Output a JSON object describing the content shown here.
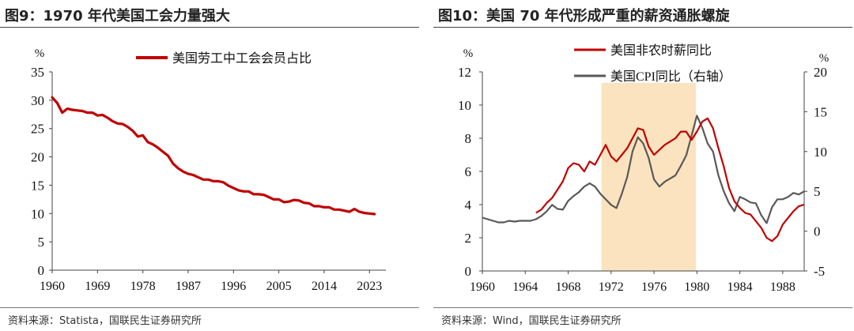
{
  "left": {
    "title": "图9：1970 年代美国工会力量强大",
    "source": "资料来源：Statista，国联民生证券研究所",
    "chart_data": {
      "type": "line",
      "ylabel": "%",
      "ylim": [
        0,
        35
      ],
      "yticks": [
        0,
        5,
        10,
        15,
        20,
        25,
        30,
        35
      ],
      "xlim": [
        1960,
        2025
      ],
      "xticks": [
        1960,
        1969,
        1978,
        1987,
        1996,
        2005,
        2014,
        2023
      ],
      "legend": "top-right",
      "series": [
        {
          "name": "美国劳工中工会会员占比",
          "color": "#c00000",
          "x": [
            1960,
            1961,
            1962,
            1963,
            1964,
            1965,
            1966,
            1967,
            1968,
            1969,
            1970,
            1971,
            1972,
            1973,
            1974,
            1975,
            1976,
            1977,
            1978,
            1979,
            1980,
            1981,
            1982,
            1983,
            1984,
            1985,
            1986,
            1987,
            1988,
            1989,
            1990,
            1991,
            1992,
            1993,
            1994,
            1995,
            1996,
            1997,
            1998,
            1999,
            2000,
            2001,
            2002,
            2003,
            2004,
            2005,
            2006,
            2007,
            2008,
            2009,
            2010,
            2011,
            2012,
            2013,
            2014,
            2015,
            2016,
            2017,
            2018,
            2019,
            2020,
            2021,
            2022,
            2023,
            2024
          ],
          "y": [
            30.5,
            29.5,
            27.8,
            28.5,
            28.3,
            28.2,
            28.1,
            27.8,
            27.8,
            27.3,
            27.4,
            26.9,
            26.3,
            25.9,
            25.8,
            25.3,
            24.6,
            23.6,
            23.8,
            22.6,
            22.2,
            21.6,
            20.9,
            20.2,
            18.8,
            18.0,
            17.4,
            17.0,
            16.8,
            16.4,
            16.0,
            16.0,
            15.7,
            15.7,
            15.5,
            14.9,
            14.5,
            14.1,
            13.9,
            13.9,
            13.4,
            13.4,
            13.3,
            12.9,
            12.5,
            12.5,
            12.0,
            12.1,
            12.4,
            12.3,
            11.9,
            11.8,
            11.3,
            11.3,
            11.1,
            11.1,
            10.7,
            10.7,
            10.5,
            10.3,
            10.8,
            10.3,
            10.1,
            10.0,
            9.9
          ]
        }
      ]
    }
  },
  "right": {
    "title": "图10：美国 70 年代形成严重的薪资通胀螺旋",
    "source": "资料来源：Wind，国联民生证券研究所",
    "chart_data": {
      "type": "line",
      "ylabel": "%",
      "ylabel_right": "%",
      "ylim": [
        0,
        12
      ],
      "yticks": [
        0,
        2,
        4,
        6,
        8,
        10,
        12
      ],
      "ylim_right": [
        -5,
        20
      ],
      "yticks_right": [
        -5,
        0,
        5,
        10,
        15,
        20
      ],
      "xlim": [
        1960,
        1990
      ],
      "xticks": [
        1960,
        1964,
        1968,
        1972,
        1976,
        1980,
        1984,
        1988
      ],
      "highlight": {
        "x_start": 1971.1,
        "x_end": 1979.9,
        "color": "#fbe3bf"
      },
      "legend": "top-center",
      "series": [
        {
          "name": "美国非农时薪同比",
          "axis": "left",
          "color": "#c00000",
          "x": [
            1965,
            1965.5,
            1966,
            1966.5,
            1967,
            1967.5,
            1968,
            1968.5,
            1969,
            1969.5,
            1970,
            1970.5,
            1971,
            1971.5,
            1972,
            1972.5,
            1973,
            1973.5,
            1974,
            1974.5,
            1975,
            1975.5,
            1976,
            1976.5,
            1977,
            1977.5,
            1978,
            1978.5,
            1979,
            1979.5,
            1980,
            1980.5,
            1981,
            1981.5,
            1982,
            1982.5,
            1983,
            1983.5,
            1984,
            1984.5,
            1985,
            1985.5,
            1986,
            1986.5,
            1987,
            1987.5,
            1988,
            1988.5,
            1989,
            1989.5,
            1990
          ],
          "y": [
            3.5,
            3.7,
            4.1,
            4.4,
            4.9,
            5.4,
            6.2,
            6.5,
            6.4,
            6.0,
            6.6,
            6.4,
            7.0,
            7.6,
            6.9,
            6.6,
            7.0,
            7.4,
            8.0,
            8.6,
            8.5,
            7.5,
            7.0,
            7.3,
            7.6,
            7.8,
            8.0,
            8.4,
            8.4,
            7.9,
            8.4,
            9.0,
            9.2,
            8.6,
            7.4,
            6.3,
            5.0,
            4.2,
            3.8,
            3.5,
            3.4,
            3.0,
            2.6,
            2.0,
            1.8,
            2.1,
            2.8,
            3.2,
            3.6,
            3.9,
            4.0
          ]
        },
        {
          "name": "美国CPI同比（右轴）",
          "axis": "right",
          "color": "#595959",
          "x": [
            1960,
            1960.5,
            1961,
            1961.5,
            1962,
            1962.5,
            1963,
            1963.5,
            1964,
            1964.5,
            1965,
            1965.5,
            1966,
            1966.5,
            1967,
            1967.5,
            1968,
            1968.5,
            1969,
            1969.5,
            1970,
            1970.5,
            1971,
            1971.5,
            1972,
            1972.5,
            1973,
            1973.5,
            1974,
            1974.5,
            1975,
            1975.5,
            1976,
            1976.5,
            1977,
            1977.5,
            1978,
            1978.5,
            1979,
            1979.5,
            1980,
            1980.5,
            1981,
            1981.5,
            1982,
            1982.5,
            1983,
            1983.5,
            1984,
            1984.5,
            1985,
            1985.5,
            1986,
            1986.5,
            1987,
            1987.5,
            1988,
            1988.5,
            1989,
            1989.5,
            1990
          ],
          "y": [
            1.7,
            1.5,
            1.3,
            1.1,
            1.1,
            1.3,
            1.2,
            1.3,
            1.3,
            1.3,
            1.5,
            1.9,
            2.5,
            3.3,
            2.8,
            2.7,
            3.8,
            4.4,
            4.9,
            5.6,
            6.0,
            5.6,
            4.7,
            4.0,
            3.3,
            2.9,
            4.7,
            6.8,
            10.0,
            11.8,
            11.0,
            9.2,
            6.5,
            5.6,
            6.2,
            6.6,
            7.0,
            8.2,
            9.5,
            12.0,
            14.5,
            13.0,
            11.0,
            10.0,
            7.0,
            5.0,
            3.5,
            2.5,
            4.3,
            4.0,
            3.6,
            3.5,
            2.0,
            1.0,
            3.0,
            4.0,
            4.0,
            4.3,
            4.8,
            4.6,
            5.0
          ]
        }
      ]
    }
  }
}
